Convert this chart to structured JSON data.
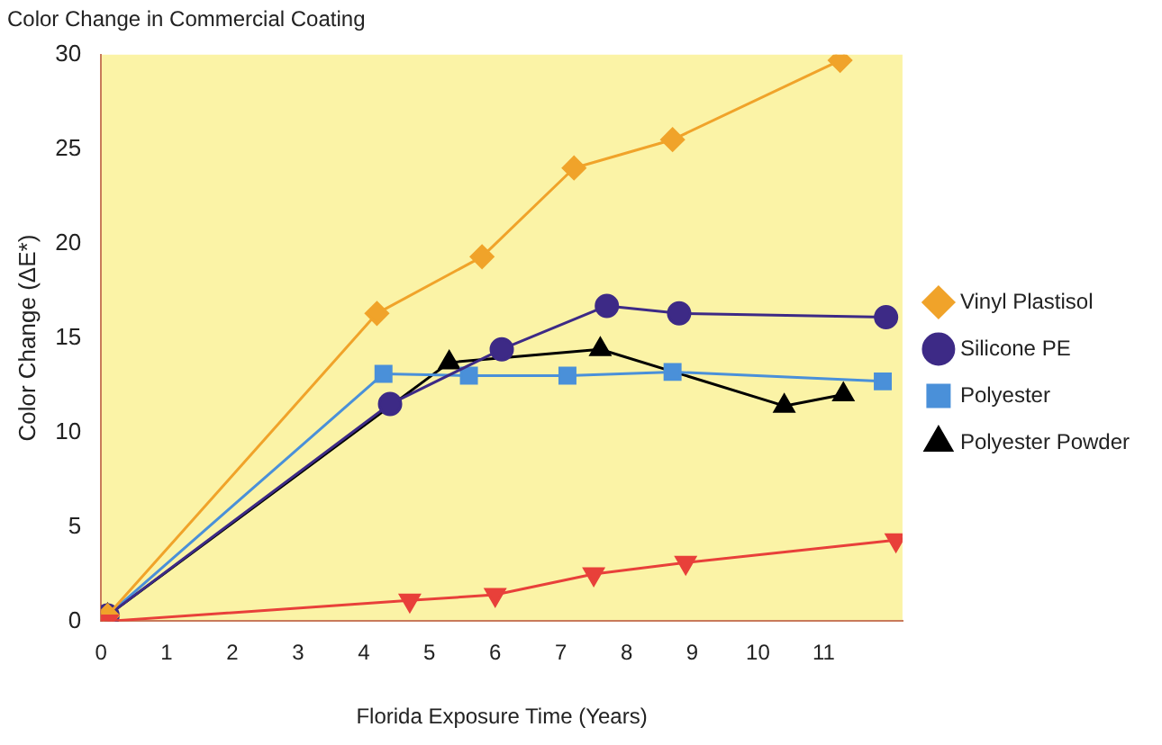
{
  "chart_data": {
    "type": "line",
    "title": "Color Change in Commercial Coating",
    "xlabel": "Florida Exposure Time (Years)",
    "ylabel": "Color Change (ΔE*)",
    "xlim": [
      0,
      12.2
    ],
    "xticks": [
      0,
      1,
      2,
      3,
      4,
      5,
      6,
      7,
      8,
      9,
      10,
      11
    ],
    "ylim": [
      0,
      30
    ],
    "yticks": [
      0,
      5,
      10,
      15,
      20,
      25,
      30
    ],
    "grid": false,
    "legend": "right",
    "series": [
      {
        "color": "#e8403a",
        "marker": "triangle-down",
        "x": [
          0.1,
          4.7,
          6.0,
          7.5,
          8.9,
          12.1
        ],
        "values": [
          0,
          1.1,
          1.4,
          2.5,
          3.1,
          4.3
        ]
      },
      {
        "name": "Vinyl Plastisol",
        "color": "#f0a32a",
        "marker": "diamond",
        "x": [
          0.1,
          4.2,
          5.8,
          7.2,
          8.7,
          11.25
        ],
        "values": [
          0.3,
          16.3,
          19.3,
          24,
          25.5,
          29.7
        ]
      },
      {
        "name": "Silicone PE",
        "color": "#3d2a86",
        "marker": "circle",
        "x": [
          0.1,
          4.4,
          6.1,
          7.7,
          8.8,
          11.95
        ],
        "values": [
          0.3,
          11.5,
          14.4,
          16.7,
          16.3,
          16.1
        ]
      },
      {
        "name": "Polyester",
        "color": "#4a90d9",
        "marker": "square",
        "x": [
          0.1,
          4.3,
          5.6,
          7.1,
          8.7,
          11.9
        ],
        "values": [
          0.3,
          13.1,
          13.0,
          13.0,
          13.2,
          12.7
        ]
      },
      {
        "name": "Polyester Powder",
        "color": "#000000",
        "marker": "triangle",
        "x": [
          0.1,
          5.3,
          7.6,
          10.4,
          11.3
        ],
        "values": [
          0.3,
          13.7,
          14.4,
          11.4,
          12.0
        ]
      }
    ]
  }
}
